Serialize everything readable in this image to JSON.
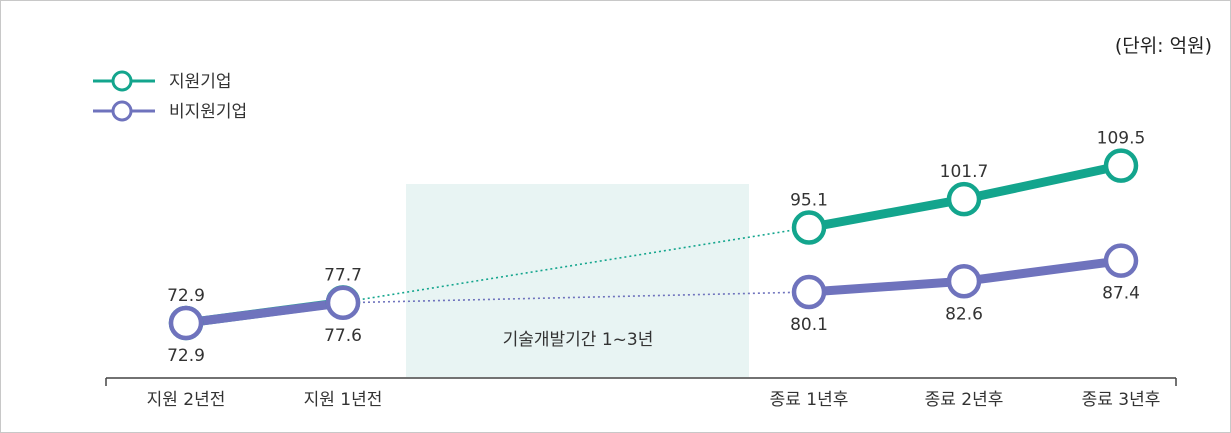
{
  "chart_data": {
    "type": "line",
    "unit_label": "(단위: 억원)",
    "categories": [
      "지원 2년전",
      "지원 1년전",
      "종료 1년후",
      "종료 2년후",
      "종료 3년후"
    ],
    "period_label": "기술개발기간 1~3년",
    "series": [
      {
        "name": "지원기업",
        "color": "#13a58d",
        "values": [
          72.9,
          77.7,
          95.1,
          101.7,
          109.5
        ]
      },
      {
        "name": "비지원기업",
        "color": "#6f73bd",
        "values": [
          72.9,
          77.6,
          80.1,
          82.6,
          87.4
        ]
      }
    ],
    "value_labels": {
      "support": [
        "72.9",
        "77.7",
        "95.1",
        "101.7",
        "109.5"
      ],
      "non_support": [
        "72.9",
        "77.6",
        "80.1",
        "82.6",
        "87.4"
      ]
    },
    "legend_position": "top-left",
    "grid": false
  }
}
